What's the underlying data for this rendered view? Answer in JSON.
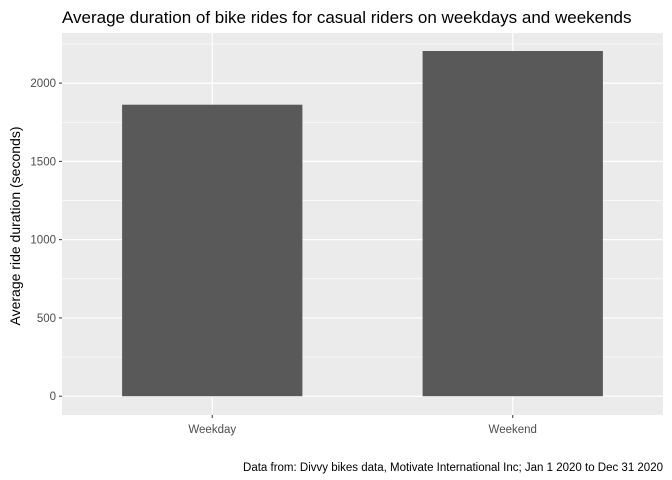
{
  "chart_data": {
    "type": "bar",
    "title": "Average duration of bike rides for casual riders on weekdays and weekends",
    "caption": "Data from: Divvy bikes data, Motivate International Inc; Jan 1 2020 to Dec 31 2020",
    "xlabel": "",
    "ylabel": "Average ride duration (seconds)",
    "categories": [
      "Weekday",
      "Weekend"
    ],
    "values": [
      1862,
      2205
    ],
    "ylim": [
      -120,
      2320
    ],
    "yticks": [
      0,
      500,
      1000,
      1500,
      2000
    ],
    "ytick_labels": [
      "0",
      "500",
      "1000",
      "1500",
      "2000"
    ],
    "grid": true,
    "colors": {
      "bar": "#595959",
      "panel": "#ebebeb",
      "grid": "#ffffff",
      "tick_text": "#4d4d4d",
      "tick_mark": "#333333"
    }
  }
}
